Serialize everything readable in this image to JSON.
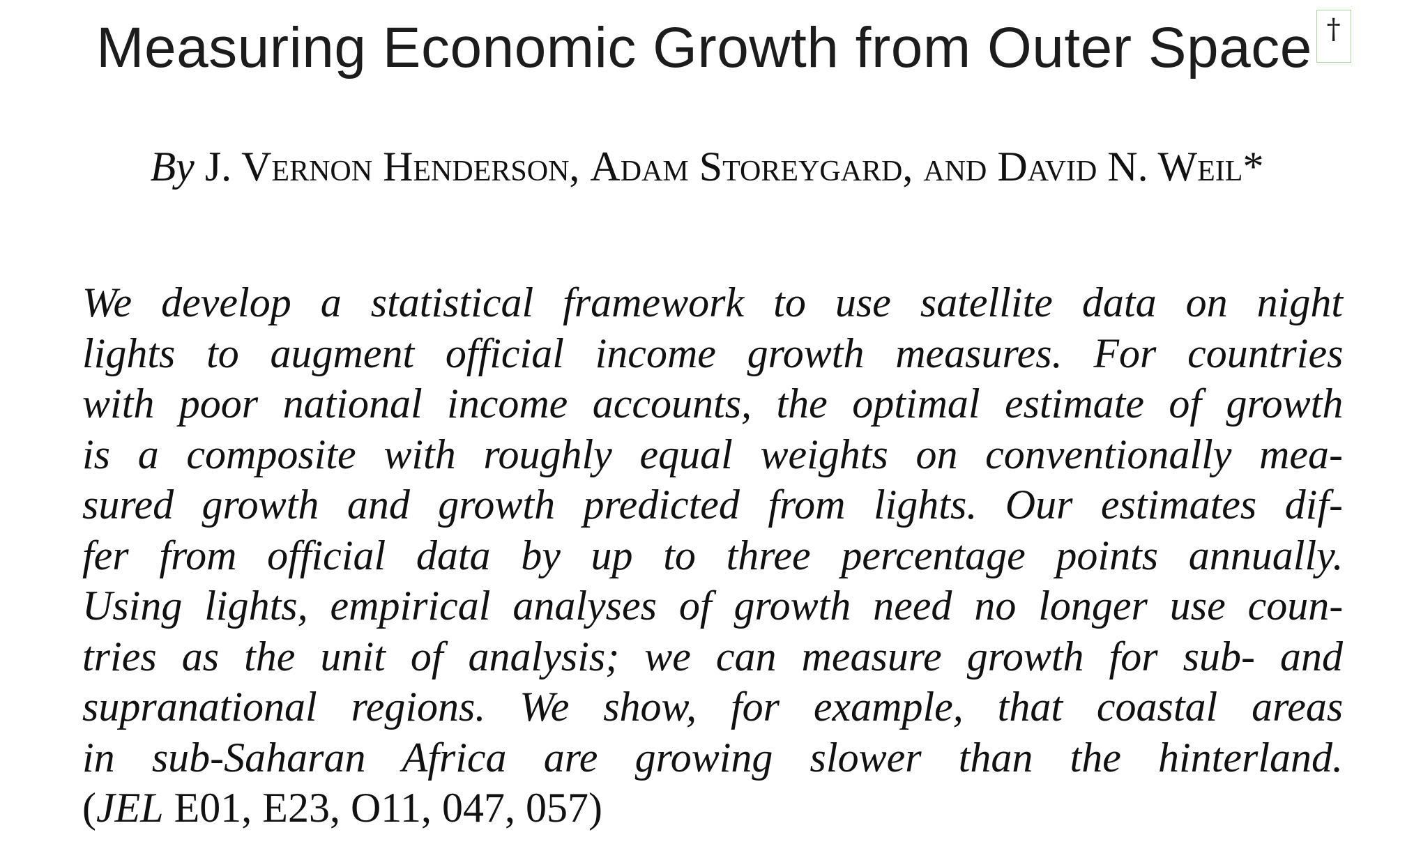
{
  "title": "Measuring Economic Growth from Outer Space",
  "title_footnote_marker": "†",
  "byline": {
    "by": "By",
    "author1": "J. Vernon Henderson,",
    "author2": "Adam Storeygard,",
    "conjunction": "and",
    "author3": "David N. Weil",
    "marker": "*"
  },
  "abstract": {
    "lines": [
      "We develop a statistical framework to use satellite data on night",
      "lights to augment official income growth measures. For countries",
      "with poor national income accounts, the optimal estimate of growth",
      "is a composite with roughly equal weights on conventionally mea-",
      "sured growth and growth predicted from lights. Our estimates dif-",
      "fer from official data by up to three percentage points annually.",
      "Using lights, empirical analyses of growth need no longer use coun-",
      "tries as the unit of analysis; we can measure growth for sub- and",
      "supranational regions. We show, for example, that coastal areas",
      "in sub-Saharan Africa are growing slower than the hinterland."
    ],
    "jel_open": "(",
    "jel_label": "JEL",
    "jel_codes": " E01, E23, O11, 047, 057)"
  }
}
